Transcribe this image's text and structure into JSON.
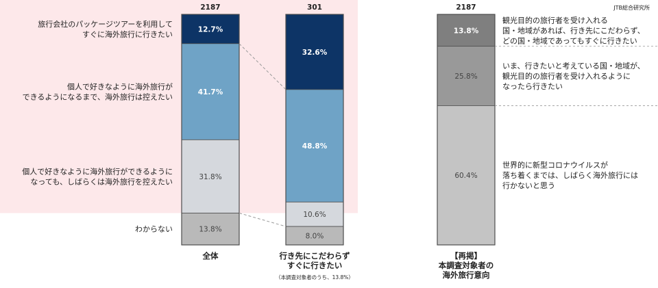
{
  "source_label": "JTB総合研究所",
  "colors": {
    "highlight_bg": "#fde8ea",
    "navy": "#0d3466",
    "mid_blue": "#6fa3c6",
    "light_gray": "#d5d8dd",
    "mid_gray": "#b9b9b9",
    "gray_a": "#7f7f7f",
    "gray_b": "#999999",
    "gray_c": "#c4c4c4",
    "border": "#4d4d4d",
    "connector": "#9a9a9a"
  },
  "row_labels": {
    "package_tour": [
      "旅行会社のパッケージツアーを利用して",
      "すぐに海外旅行に行きたい"
    ],
    "independent_wait": [
      "個人で好きなように海外旅行が",
      "できるようになるまで、海外旅行は控えたい"
    ],
    "independent_refrain": [
      "個人で好きなように海外旅行ができるように",
      "なっても、しばらくは海外旅行を控えたい"
    ],
    "unknown": [
      "わからない"
    ]
  },
  "chart_data": [
    {
      "type": "bar",
      "stacked": true,
      "categories": [
        "全体",
        "行き先にこだわらず すぐに行きたい"
      ],
      "category_label_lines": [
        [
          "全体"
        ],
        [
          "行き先にこだわらず",
          "すぐに行きたい"
        ]
      ],
      "category_note": "（本調査対象者のうち、13.8%）",
      "n": [
        "2187",
        "301"
      ],
      "series": [
        {
          "name": "旅行会社のパッケージツアーを利用して すぐに海外旅行に行きたい",
          "values": [
            12.7,
            32.6
          ],
          "labels": [
            "12.7%",
            "32.6%"
          ],
          "color": "#0d3466"
        },
        {
          "name": "個人で好きなように海外旅行が できるようになるまで、海外旅行は控えたい",
          "values": [
            41.7,
            48.8
          ],
          "labels": [
            "41.7%",
            "48.8%"
          ],
          "color": "#6fa3c6"
        },
        {
          "name": "個人で好きなように海外旅行ができるように なっても、しばらくは海外旅行を控えたい",
          "values": [
            31.8,
            10.6
          ],
          "labels": [
            "31.8%",
            "10.6%"
          ],
          "color": "#d5d8dd"
        },
        {
          "name": "わからない",
          "values": [
            13.8,
            8.0
          ],
          "labels": [
            "13.8%",
            "8.0%"
          ],
          "color": "#b9b9b9"
        }
      ]
    },
    {
      "type": "bar",
      "stacked": true,
      "categories": [
        "【再掲】 本調査対象者の 海外旅行意向"
      ],
      "category_label_lines": [
        [
          "【再掲】",
          "本調査対象者の",
          "海外旅行意向"
        ]
      ],
      "n": [
        "2187"
      ],
      "series": [
        {
          "name": "観光目的の旅行者を受け入れる 国・地域があれば、行き先にこだわらず、 どの国・地域であってもすぐに行きたい",
          "name_lines": [
            "観光目的の旅行者を受け入れる",
            "国・地域があれば、行き先にこだわらず、",
            "どの国・地域であってもすぐに行きたい"
          ],
          "values": [
            13.8
          ],
          "labels": [
            "13.8%"
          ],
          "color": "#7f7f7f"
        },
        {
          "name": "いま、行きたいと考えている国・地域が、 観光目的の旅行者を受け入れるように なったら行きたい",
          "name_lines": [
            "いま、行きたいと考えている国・地域が、",
            "観光目的の旅行者を受け入れるように",
            "なったら行きたい"
          ],
          "values": [
            25.8
          ],
          "labels": [
            "25.8%"
          ],
          "color": "#999999"
        },
        {
          "name": "世界的に新型コロナウイルスが 落ち着くまでは、しばらく海外旅行には 行かないと思う",
          "name_lines": [
            "世界的に新型コロナウイルスが",
            "落ち着くまでは、しばらく海外旅行には",
            "行かないと思う"
          ],
          "values": [
            60.4
          ],
          "labels": [
            "60.4%"
          ],
          "color": "#c4c4c4"
        }
      ]
    }
  ]
}
